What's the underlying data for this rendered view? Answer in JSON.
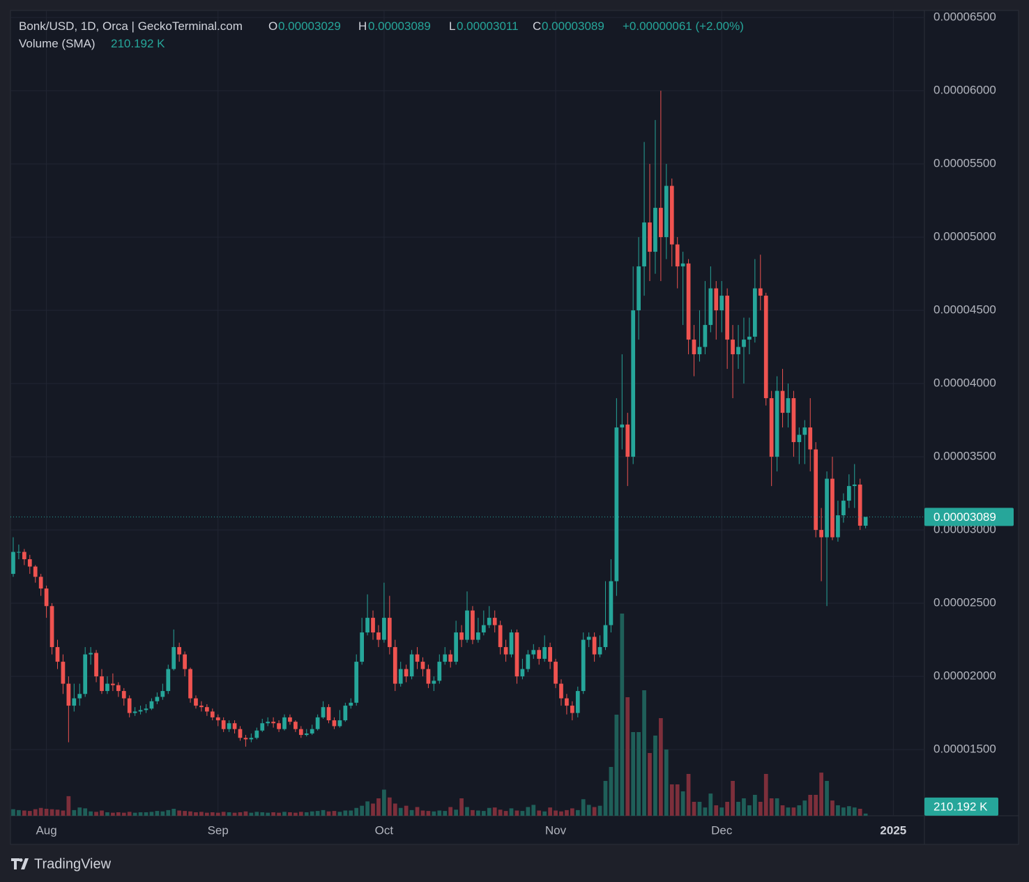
{
  "chart_data": {
    "type": "candlestick",
    "title": "Bonk/USD, 1D, Orca | GeckoTerminal.com",
    "ohlc": [
      {
        "name": "O",
        "value": "0.00003029"
      },
      {
        "name": "H",
        "value": "0.00003089"
      },
      {
        "name": "L",
        "value": "0.00003011"
      },
      {
        "name": "C",
        "value": "0.00003089"
      }
    ],
    "change": "+0.00000061 (+2.00%)",
    "volume_name": "Volume (SMA)",
    "volume_sma": {
      "value": 210.192,
      "label": "210.192 K"
    },
    "last_price": {
      "value": 3.089e-05,
      "label": "0.00003089"
    },
    "brand": "TradingView",
    "up_color": "#26a69a",
    "down_color": "#ef5350",
    "volume_up_color": "#1f5f59",
    "volume_down_color": "#7d2f3b",
    "grid": true,
    "xlim": [
      -0.5,
      164.5
    ],
    "xticks": [
      {
        "value": 6,
        "label": "Aug"
      },
      {
        "value": 37,
        "label": "Sep"
      },
      {
        "value": 67,
        "label": "Oct"
      },
      {
        "value": 98,
        "label": "Nov"
      },
      {
        "value": 128,
        "label": "Dec"
      },
      {
        "value": 159,
        "label": "2025"
      }
    ],
    "ylim": [
      1.048e-05,
      6.548e-05
    ],
    "yticks": [
      {
        "value": 1.5e-05,
        "label": "0.00001500"
      },
      {
        "value": 2e-05,
        "label": "0.00002000"
      },
      {
        "value": 2.5e-05,
        "label": "0.00002500"
      },
      {
        "value": 3e-05,
        "label": "0.00003000"
      },
      {
        "value": 3.5e-05,
        "label": "0.00003500"
      },
      {
        "value": 4e-05,
        "label": "0.00004000"
      },
      {
        "value": 4.5e-05,
        "label": "0.00004500"
      },
      {
        "value": 5e-05,
        "label": "0.00005000"
      },
      {
        "value": 5.5e-05,
        "label": "0.00005500"
      },
      {
        "value": 6e-05,
        "label": "0.00006000"
      },
      {
        "value": 6.5e-05,
        "label": "0.00006500"
      }
    ],
    "open": [
      2.7e-05,
      2.85e-05,
      2.85e-05,
      2.8e-05,
      2.75e-05,
      2.68e-05,
      2.6e-05,
      2.48e-05,
      2.2e-05,
      2.1e-05,
      1.95e-05,
      1.8e-05,
      1.85e-05,
      1.88e-05,
      2.15e-05,
      2.16e-05,
      2e-05,
      1.9e-05,
      1.95e-05,
      1.94e-05,
      1.9e-05,
      1.85e-05,
      1.75e-05,
      1.76e-05,
      1.77e-05,
      1.78e-05,
      1.83e-05,
      1.86e-05,
      1.9e-05,
      2.05e-05,
      2.2e-05,
      2.15e-05,
      2.05e-05,
      1.85e-05,
      1.8e-05,
      1.79e-05,
      1.76e-05,
      1.72e-05,
      1.7e-05,
      1.64e-05,
      1.68e-05,
      1.64e-05,
      1.58e-05,
      1.57e-05,
      1.58e-05,
      1.63e-05,
      1.68e-05,
      1.69e-05,
      1.68e-05,
      1.64e-05,
      1.72e-05,
      1.69e-05,
      1.64e-05,
      1.6e-05,
      1.61e-05,
      1.64e-05,
      1.72e-05,
      1.79e-05,
      1.7e-05,
      1.66e-05,
      1.7e-05,
      1.8e-05,
      1.82e-05,
      2.1e-05,
      2.3e-05,
      2.4e-05,
      2.3e-05,
      2.25e-05,
      2.4e-05,
      2.2e-05,
      1.95e-05,
      2.05e-05,
      2e-05,
      2.15e-05,
      2.1e-05,
      2.05e-05,
      1.95e-05,
      1.97e-05,
      2.1e-05,
      2.15e-05,
      2.1e-05,
      2.3e-05,
      2.25e-05,
      2.45e-05,
      2.25e-05,
      2.3e-05,
      2.35e-05,
      2.4e-05,
      2.35e-05,
      2.2e-05,
      2.15e-05,
      2.3e-05,
      2e-05,
      2.05e-05,
      2.15e-05,
      2.18e-05,
      2.12e-05,
      2.2e-05,
      2.1e-05,
      1.95e-05,
      1.85e-05,
      1.8e-05,
      1.75e-05,
      1.9e-05,
      2.25e-05,
      2.27e-05,
      2.15e-05,
      2.2e-05,
      2.35e-05,
      2.65e-05,
      3.7e-05,
      3.72e-05,
      3.5e-05,
      4.5e-05,
      4.8e-05,
      5.1e-05,
      4.9e-05,
      5.2e-05,
      5e-05,
      5.35e-05,
      4.95e-05,
      4.8e-05,
      4.82e-05,
      4.3e-05,
      4.2e-05,
      4.25e-05,
      4.4e-05,
      4.65e-05,
      4.5e-05,
      4.6e-05,
      4.3e-05,
      4.2e-05,
      4.25e-05,
      4.3e-05,
      4.32e-05,
      4.65e-05,
      4.6e-05,
      3.9e-05,
      3.5e-05,
      3.95e-05,
      3.8e-05,
      3.9e-05,
      3.6e-05,
      3.65e-05,
      3.7e-05,
      3.55e-05,
      3e-05,
      2.95e-05,
      3.35e-05,
      2.95e-05,
      3.1e-05,
      3.2e-05,
      3.3e-05,
      3.31e-05,
      3.029e-05
    ],
    "high": [
      2.95e-05,
      2.9e-05,
      2.87e-05,
      2.83e-05,
      2.76e-05,
      2.7e-05,
      2.62e-05,
      2.5e-05,
      2.25e-05,
      2.15e-05,
      2e-05,
      1.95e-05,
      1.95e-05,
      2.2e-05,
      2.2e-05,
      2.18e-05,
      2.05e-05,
      2e-05,
      2.02e-05,
      1.96e-05,
      1.92e-05,
      1.87e-05,
      1.79e-05,
      1.8e-05,
      1.81e-05,
      1.85e-05,
      1.89e-05,
      1.95e-05,
      2.08e-05,
      2.32e-05,
      2.23e-05,
      2.17e-05,
      2.06e-05,
      1.87e-05,
      1.83e-05,
      1.81e-05,
      1.78e-05,
      1.74e-05,
      1.72e-05,
      1.7e-05,
      1.7e-05,
      1.66e-05,
      1.6e-05,
      1.61e-05,
      1.65e-05,
      1.71e-05,
      1.72e-05,
      1.72e-05,
      1.7e-05,
      1.74e-05,
      1.74e-05,
      1.7e-05,
      1.66e-05,
      1.64e-05,
      1.67e-05,
      1.74e-05,
      1.83e-05,
      1.81e-05,
      1.72e-05,
      1.77e-05,
      1.82e-05,
      1.85e-05,
      2.15e-05,
      2.4e-05,
      2.56e-05,
      2.45e-05,
      2.35e-05,
      2.64e-05,
      2.55e-05,
      2.25e-05,
      2.1e-05,
      2.08e-05,
      2.18e-05,
      2.2e-05,
      2.13e-05,
      2.08e-05,
      2e-05,
      2.15e-05,
      2.2e-05,
      2.18e-05,
      2.38e-05,
      2.35e-05,
      2.58e-05,
      2.48e-05,
      2.4e-05,
      2.45e-05,
      2.48e-05,
      2.45e-05,
      2.38e-05,
      2.25e-05,
      2.32e-05,
      2.32e-05,
      2.12e-05,
      2.18e-05,
      2.22e-05,
      2.2e-05,
      2.28e-05,
      2.23e-05,
      2.12e-05,
      1.98e-05,
      1.88e-05,
      1.83e-05,
      1.93e-05,
      2.3e-05,
      2.3e-05,
      2.3e-05,
      2.28e-05,
      2.65e-05,
      2.8e-05,
      3.9e-05,
      4.2e-05,
      3.8e-05,
      4.8e-05,
      5e-05,
      5.65e-05,
      5.5e-05,
      5.8e-05,
      6e-05,
      5.5e-05,
      5.4e-05,
      5e-05,
      4.9e-05,
      4.85e-05,
      4.4e-05,
      4.5e-05,
      4.7e-05,
      4.8e-05,
      4.7e-05,
      4.7e-05,
      4.65e-05,
      4.4e-05,
      4.4e-05,
      4.45e-05,
      4.45e-05,
      4.85e-05,
      4.88e-05,
      4.62e-05,
      3.95e-05,
      4.05e-05,
      4.1e-05,
      4e-05,
      3.95e-05,
      3.7e-05,
      3.75e-05,
      3.9e-05,
      3.6e-05,
      3.15e-05,
      3.4e-05,
      3.5e-05,
      3.2e-05,
      3.25e-05,
      3.38e-05,
      3.45e-05,
      3.35e-05,
      3.089e-05
    ],
    "low": [
      2.68e-05,
      2.8e-05,
      2.76e-05,
      2.7e-05,
      2.64e-05,
      2.55e-05,
      2.4e-05,
      2.15e-05,
      2.05e-05,
      1.88e-05,
      1.55e-05,
      1.76e-05,
      1.8e-05,
      1.86e-05,
      2.08e-05,
      1.96e-05,
      1.88e-05,
      1.88e-05,
      1.9e-05,
      1.86e-05,
      1.8e-05,
      1.72e-05,
      1.73e-05,
      1.74e-05,
      1.75e-05,
      1.77e-05,
      1.81e-05,
      1.84e-05,
      1.88e-05,
      2.04e-05,
      2.1e-05,
      2e-05,
      1.82e-05,
      1.78e-05,
      1.76e-05,
      1.73e-05,
      1.7e-05,
      1.66e-05,
      1.62e-05,
      1.62e-05,
      1.61e-05,
      1.56e-05,
      1.52e-05,
      1.55e-05,
      1.57e-05,
      1.62e-05,
      1.66e-05,
      1.65e-05,
      1.62e-05,
      1.63e-05,
      1.67e-05,
      1.62e-05,
      1.58e-05,
      1.59e-05,
      1.6e-05,
      1.63e-05,
      1.71e-05,
      1.68e-05,
      1.64e-05,
      1.65e-05,
      1.69e-05,
      1.78e-05,
      1.8e-05,
      2.08e-05,
      2.28e-05,
      2.25e-05,
      2.2e-05,
      2.23e-05,
      2.15e-05,
      1.9e-05,
      1.93e-05,
      1.96e-05,
      1.98e-05,
      2.05e-05,
      2e-05,
      1.92e-05,
      1.9e-05,
      1.95e-05,
      2.08e-05,
      2.06e-05,
      2.08e-05,
      2.2e-05,
      2.23e-05,
      2.22e-05,
      2.23e-05,
      2.28e-05,
      2.33e-05,
      2.3e-05,
      2.15e-05,
      2.1e-05,
      2.13e-05,
      1.95e-05,
      1.98e-05,
      2.03e-05,
      2.12e-05,
      2.08e-05,
      2.1e-05,
      2.05e-05,
      1.92e-05,
      1.8e-05,
      1.74e-05,
      1.7e-05,
      1.72e-05,
      1.88e-05,
      2.2e-05,
      2.1e-05,
      2.13e-05,
      2.18e-05,
      2.3e-05,
      2.55e-05,
      3.55e-05,
      3.3e-05,
      3.45e-05,
      4.3e-05,
      4.6e-05,
      4.7e-05,
      4.75e-05,
      4.7e-05,
      4.85e-05,
      4.8e-05,
      4.65e-05,
      4.4e-05,
      4.2e-05,
      4.05e-05,
      4.15e-05,
      4.2e-05,
      4.35e-05,
      4.3e-05,
      4.35e-05,
      4.1e-05,
      3.9e-05,
      4.1e-05,
      4e-05,
      4.2e-05,
      4.28e-05,
      4.5e-05,
      3.85e-05,
      3.3e-05,
      3.4e-05,
      3.7e-05,
      3.7e-05,
      3.5e-05,
      3.45e-05,
      3.45e-05,
      3.4e-05,
      2.95e-05,
      2.65e-05,
      2.48e-05,
      2.93e-05,
      2.92e-05,
      3.05e-05,
      3.15e-05,
      3.15e-05,
      3e-05,
      3.011e-05
    ],
    "close": [
      2.85e-05,
      2.85e-05,
      2.8e-05,
      2.75e-05,
      2.68e-05,
      2.6e-05,
      2.48e-05,
      2.2e-05,
      2.1e-05,
      1.95e-05,
      1.8e-05,
      1.85e-05,
      1.88e-05,
      2.15e-05,
      2.16e-05,
      2e-05,
      1.9e-05,
      1.95e-05,
      1.94e-05,
      1.9e-05,
      1.85e-05,
      1.75e-05,
      1.76e-05,
      1.77e-05,
      1.78e-05,
      1.83e-05,
      1.86e-05,
      1.9e-05,
      2.05e-05,
      2.2e-05,
      2.15e-05,
      2.05e-05,
      1.85e-05,
      1.8e-05,
      1.79e-05,
      1.76e-05,
      1.72e-05,
      1.7e-05,
      1.64e-05,
      1.68e-05,
      1.64e-05,
      1.58e-05,
      1.57e-05,
      1.58e-05,
      1.63e-05,
      1.68e-05,
      1.69e-05,
      1.68e-05,
      1.64e-05,
      1.72e-05,
      1.69e-05,
      1.64e-05,
      1.6e-05,
      1.61e-05,
      1.64e-05,
      1.72e-05,
      1.79e-05,
      1.7e-05,
      1.66e-05,
      1.7e-05,
      1.8e-05,
      1.82e-05,
      2.1e-05,
      2.3e-05,
      2.4e-05,
      2.3e-05,
      2.25e-05,
      2.4e-05,
      2.2e-05,
      1.95e-05,
      2.05e-05,
      2e-05,
      2.15e-05,
      2.1e-05,
      2.05e-05,
      1.95e-05,
      1.97e-05,
      2.1e-05,
      2.15e-05,
      2.1e-05,
      2.3e-05,
      2.25e-05,
      2.45e-05,
      2.25e-05,
      2.3e-05,
      2.35e-05,
      2.4e-05,
      2.35e-05,
      2.2e-05,
      2.15e-05,
      2.3e-05,
      2e-05,
      2.05e-05,
      2.15e-05,
      2.18e-05,
      2.12e-05,
      2.2e-05,
      2.1e-05,
      1.95e-05,
      1.85e-05,
      1.8e-05,
      1.75e-05,
      1.9e-05,
      2.25e-05,
      2.27e-05,
      2.15e-05,
      2.2e-05,
      2.35e-05,
      2.65e-05,
      3.7e-05,
      3.72e-05,
      3.5e-05,
      4.5e-05,
      4.8e-05,
      5.1e-05,
      4.9e-05,
      5.2e-05,
      5e-05,
      5.35e-05,
      4.95e-05,
      4.8e-05,
      4.82e-05,
      4.3e-05,
      4.2e-05,
      4.25e-05,
      4.4e-05,
      4.65e-05,
      4.5e-05,
      4.6e-05,
      4.3e-05,
      4.2e-05,
      4.25e-05,
      4.3e-05,
      4.32e-05,
      4.65e-05,
      4.6e-05,
      3.9e-05,
      3.5e-05,
      3.95e-05,
      3.8e-05,
      3.9e-05,
      3.6e-05,
      3.65e-05,
      3.7e-05,
      3.55e-05,
      3e-05,
      2.95e-05,
      3.35e-05,
      2.95e-05,
      3.1e-05,
      3.2e-05,
      3.3e-05,
      3.31e-05,
      3.029e-05,
      3.089e-05
    ],
    "volume": [
      150,
      130,
      120,
      110,
      150,
      180,
      160,
      150,
      140,
      120,
      450,
      130,
      190,
      170,
      100,
      90,
      120,
      80,
      70,
      80,
      70,
      90,
      70,
      80,
      80,
      90,
      110,
      100,
      130,
      160,
      120,
      110,
      100,
      80,
      90,
      70,
      80,
      70,
      90,
      80,
      70,
      80,
      100,
      70,
      90,
      80,
      70,
      80,
      70,
      90,
      80,
      70,
      90,
      80,
      100,
      110,
      130,
      100,
      110,
      90,
      120,
      120,
      180,
      230,
      330,
      280,
      400,
      600,
      420,
      280,
      180,
      230,
      130,
      200,
      120,
      110,
      100,
      120,
      110,
      200,
      140,
      400,
      200,
      130,
      120,
      110,
      180,
      190,
      140,
      110,
      170,
      120,
      110,
      200,
      250,
      120,
      100,
      190,
      120,
      100,
      130,
      170,
      130,
      380,
      250,
      200,
      230,
      800,
      1120,
      2320,
      4640,
      2720,
      1920,
      1920,
      2880,
      1440,
      1840,
      2240,
      1520,
      720,
      720,
      560,
      960,
      320,
      320,
      190,
      510,
      240,
      190,
      320,
      800,
      320,
      400,
      240,
      480,
      320,
      960,
      400,
      400,
      240,
      190,
      190,
      240,
      350,
      480,
      480,
      990,
      800,
      350,
      240,
      190,
      220,
      190,
      160,
      50
    ]
  }
}
